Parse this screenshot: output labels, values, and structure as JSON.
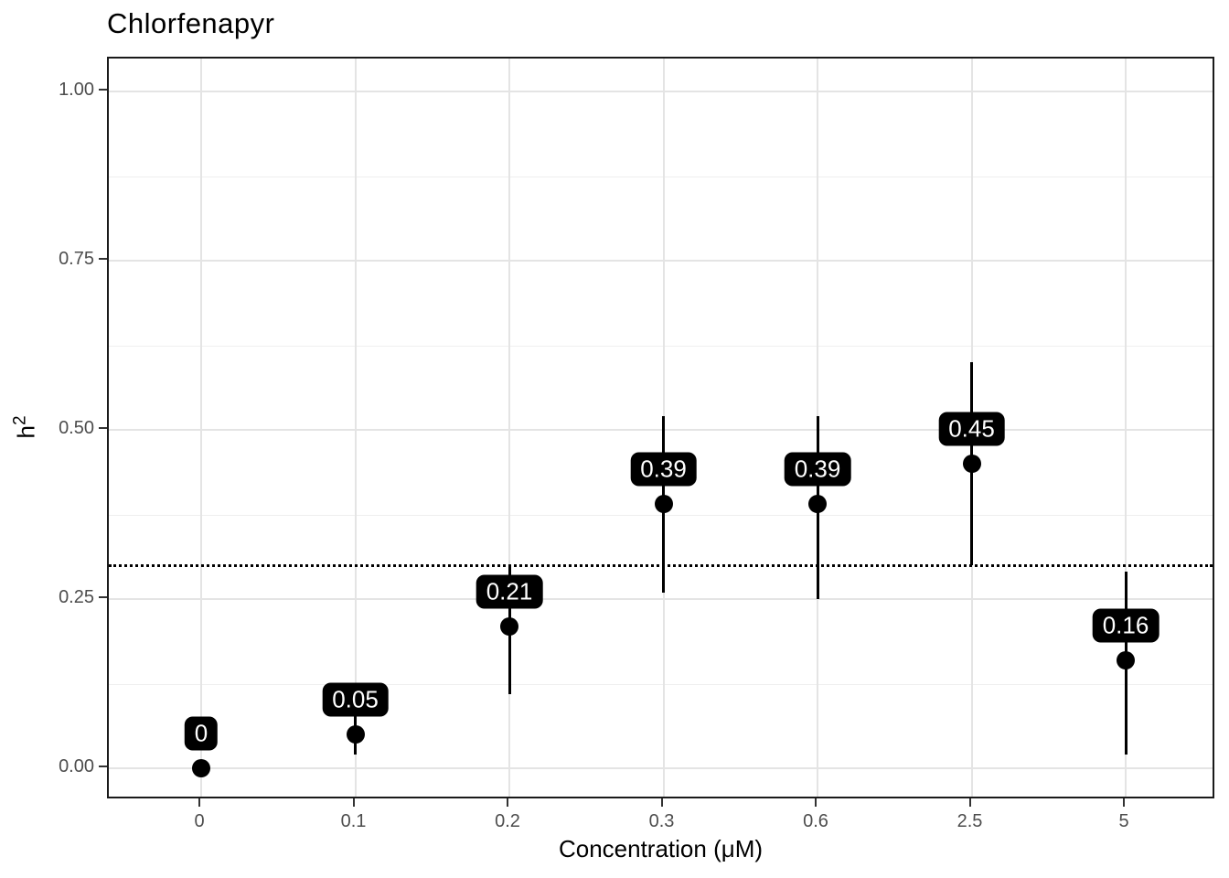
{
  "chart_data": {
    "type": "scatter",
    "title": "Chlorfenapyr",
    "xlabel": "Concentration (μM)",
    "ylabel_base": "h",
    "ylabel_exponent": "2",
    "x_axis_type": "discrete",
    "categories": [
      "0",
      "0.1",
      "0.2",
      "0.3",
      "0.6",
      "2.5",
      "5"
    ],
    "points": [
      {
        "x": "0",
        "estimate": 0.0,
        "label": "0",
        "ci_low": null,
        "ci_high": null
      },
      {
        "x": "0.1",
        "estimate": 0.05,
        "label": "0.05",
        "ci_low": 0.02,
        "ci_high": 0.09
      },
      {
        "x": "0.2",
        "estimate": 0.21,
        "label": "0.21",
        "ci_low": 0.11,
        "ci_high": 0.3
      },
      {
        "x": "0.3",
        "estimate": 0.39,
        "label": "0.39",
        "ci_low": 0.26,
        "ci_high": 0.52
      },
      {
        "x": "0.6",
        "estimate": 0.39,
        "label": "0.39",
        "ci_low": 0.25,
        "ci_high": 0.52
      },
      {
        "x": "2.5",
        "estimate": 0.45,
        "label": "0.45",
        "ci_low": 0.3,
        "ci_high": 0.6
      },
      {
        "x": "5",
        "estimate": 0.16,
        "label": "0.16",
        "ci_low": 0.02,
        "ci_high": 0.29
      }
    ],
    "reference_line": 0.3,
    "reference_line_style": "dotted",
    "y_ticks": [
      {
        "value": 0.0,
        "label": "0.00"
      },
      {
        "value": 0.25,
        "label": "0.25"
      },
      {
        "value": 0.5,
        "label": "0.50"
      },
      {
        "value": 0.75,
        "label": "0.75"
      },
      {
        "value": 1.0,
        "label": "1.00"
      }
    ],
    "y_minor_gridlines": [
      0.125,
      0.375,
      0.625,
      0.875
    ],
    "ylim": [
      0,
      1
    ],
    "grid": true,
    "legend": "none",
    "colors": {
      "point": "#000000",
      "error_bar": "#000000",
      "label_bg": "#000000",
      "label_text": "#ffffff",
      "axis_text": "#4d4d4d",
      "grid_major": "#e4e4e4",
      "grid_minor": "#efefef",
      "panel_border": "#1a1a1a",
      "reference_line": "#000000",
      "background": "#ffffff"
    }
  }
}
